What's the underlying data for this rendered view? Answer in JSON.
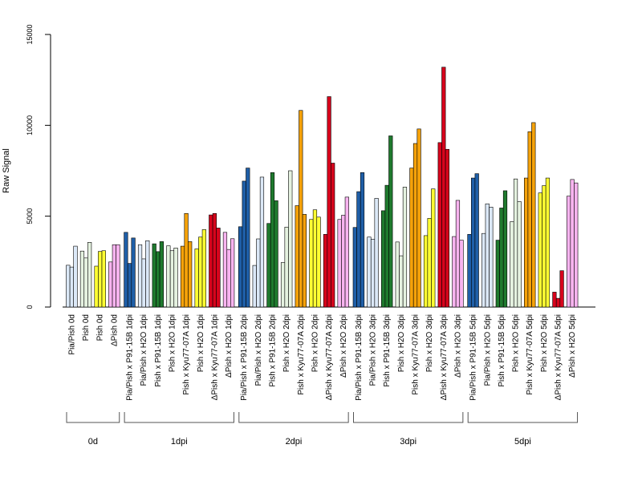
{
  "chart_data": {
    "type": "bar",
    "ylabel": "Raw Signal",
    "ylim": [
      0,
      15000
    ],
    "yticks": [
      0,
      5000,
      10000,
      15000
    ],
    "grid": false,
    "groups": [
      {
        "label": "0d",
        "conditions": [
          {
            "name": "Pia/Pish 0d",
            "color": "#dbe8f7",
            "values": [
              2300,
              2200,
              3350
            ]
          },
          {
            "name": "Pish 0d",
            "color": "#e5f2e0",
            "values": [
              3080,
              2700,
              3560
            ]
          },
          {
            "name": "Pish 0d",
            "color": "#ffff33",
            "values": [
              2250,
              3060,
              3100
            ]
          },
          {
            "name": "ΔPish 0d",
            "color": "#f8b4f0",
            "values": [
              2480,
              3430,
              3430
            ]
          }
        ]
      },
      {
        "label": "1dpi",
        "conditions": [
          {
            "name": "Pia/Pish x P91-15B 1dpi",
            "color": "#1f5fa8",
            "values": [
              4110,
              2400,
              3800
            ]
          },
          {
            "name": "Pia/Pish x H2O 1dpi",
            "color": "#dbe8f7",
            "values": [
              3430,
              2650,
              3650
            ]
          },
          {
            "name": "Pish x P91-15B 1dpi",
            "color": "#1f7a2e",
            "values": [
              3480,
              3050,
              3600
            ]
          },
          {
            "name": "Pish x H2O 1dpi",
            "color": "#e5f2e0",
            "values": [
              3370,
              3100,
              3250
            ]
          },
          {
            "name": "Pish x Kyu77-07A 1dpi",
            "color": "#f5a20a",
            "values": [
              3350,
              5150,
              3600
            ]
          },
          {
            "name": "Pish x H2O 1dpi",
            "color": "#ffff33",
            "values": [
              3200,
              3850,
              4260
            ]
          },
          {
            "name": "ΔPish x Kyu77-07A 1dpi",
            "color": "#d7041c",
            "values": [
              5070,
              5150,
              4350
            ]
          },
          {
            "name": "ΔPish x H2O 1dpi",
            "color": "#f8b4f0",
            "values": [
              4110,
              3170,
              3760
            ]
          }
        ]
      },
      {
        "label": "2dpi",
        "conditions": [
          {
            "name": "Pia/Pish x P91-15B 2dpi",
            "color": "#1f5fa8",
            "values": [
              4420,
              6930,
              7650
            ]
          },
          {
            "name": "Pia/Pish x H2O 2dpi",
            "color": "#dbe8f7",
            "values": [
              2290,
              3750,
              7150
            ]
          },
          {
            "name": "Pish x P91-15B 2dpi",
            "color": "#1f7a2e",
            "values": [
              4600,
              7400,
              5850
            ]
          },
          {
            "name": "Pish x H2O 2dpi",
            "color": "#e5f2e0",
            "values": [
              2450,
              4400,
              7500
            ]
          },
          {
            "name": "Pish x Kyu77-07A 2dpi",
            "color": "#f5a20a",
            "values": [
              5580,
              10820,
              5100
            ]
          },
          {
            "name": "Pish x H2O 2dpi",
            "color": "#ffff33",
            "values": [
              4820,
              5350,
              4950
            ]
          },
          {
            "name": "ΔPish x Kyu77-07A 2dpi",
            "color": "#d7041c",
            "values": [
              4000,
              11580,
              7920
            ]
          },
          {
            "name": "ΔPish x H2O 2dpi",
            "color": "#f8b4f0",
            "values": [
              4820,
              5050,
              6050
            ]
          }
        ]
      },
      {
        "label": "3dpi",
        "conditions": [
          {
            "name": "Pia/Pish x P91-15B 3dpi",
            "color": "#1f5fa8",
            "values": [
              4380,
              6350,
              7400
            ]
          },
          {
            "name": "Pia/Pish x H2O 3dpi",
            "color": "#dbe8f7",
            "values": [
              3850,
              3730,
              5980
            ]
          },
          {
            "name": "Pish x P91-15B 3dpi",
            "color": "#1f7a2e",
            "values": [
              5300,
              6700,
              9420
            ]
          },
          {
            "name": "Pish x H2O 3dpi",
            "color": "#e5f2e0",
            "values": [
              3580,
              2820,
              6600
            ]
          },
          {
            "name": "Pish x Kyu77-07A 3dpi",
            "color": "#f5a20a",
            "values": [
              7650,
              9000,
              9800
            ]
          },
          {
            "name": "Pish x H2O 3dpi",
            "color": "#ffff33",
            "values": [
              3930,
              4880,
              6500
            ]
          },
          {
            "name": "ΔPish x Kyu77-07A 3dpi",
            "color": "#d7041c",
            "values": [
              9050,
              13200,
              8680
            ]
          },
          {
            "name": "ΔPish x H2O 3dpi",
            "color": "#f8b4f0",
            "values": [
              3880,
              5870,
              3680
            ]
          }
        ]
      },
      {
        "label": "5dpi",
        "conditions": [
          {
            "name": "Pia/Pish x P91-15B 5dpi",
            "color": "#1f5fa8",
            "values": [
              4000,
              7100,
              7340
            ]
          },
          {
            "name": "Pia/Pish x H2O 5dpi",
            "color": "#dbe8f7",
            "values": [
              4050,
              5680,
              5500
            ]
          },
          {
            "name": "Pish x P91-15B 5dpi",
            "color": "#1f7a2e",
            "values": [
              3680,
              5450,
              6400
            ]
          },
          {
            "name": "Pish x H2O 5dpi",
            "color": "#e5f2e0",
            "values": [
              4700,
              7050,
              5800
            ]
          },
          {
            "name": "Pish x Kyu77-07A 5dpi",
            "color": "#f5a20a",
            "values": [
              7100,
              9650,
              10150
            ]
          },
          {
            "name": "Pish x H2O 5dpi",
            "color": "#ffff33",
            "values": [
              6280,
              6680,
              7100
            ]
          },
          {
            "name": "ΔPish x Kyu77-07A 5dpi",
            "color": "#d7041c",
            "values": [
              820,
              480,
              2000
            ]
          },
          {
            "name": "ΔPish x H2O 5dpi",
            "color": "#f8b4f0",
            "values": [
              6100,
              7020,
              6830
            ]
          }
        ]
      }
    ]
  }
}
